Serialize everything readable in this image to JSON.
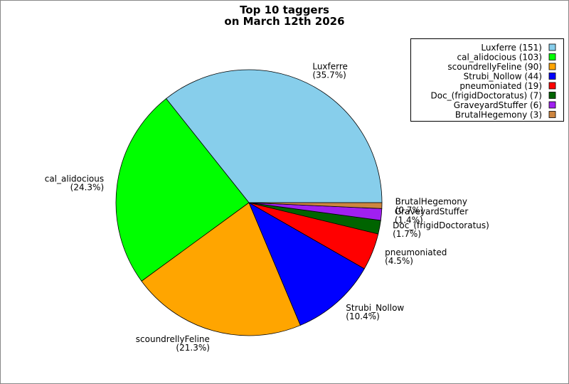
{
  "chart_data": {
    "type": "pie",
    "title": [
      "Top 10 taggers",
      "on March 12th 2026"
    ],
    "categories": [
      "Luxferre",
      "cal_alidocious",
      "scoundrellyFeline",
      "Strubi_Nollow",
      "pneumoniated",
      "Doc_(frigidDoctoratus)",
      "GraveyardStuffer",
      "BrutalHegemony"
    ],
    "values": [
      151,
      103,
      90,
      44,
      19,
      7,
      6,
      3
    ],
    "percent_labels": [
      "(35.7%)",
      "(24.3%)",
      "(21.3%)",
      "(10.4%)",
      "(4.5%)",
      "(1.7%)",
      "(1.4%)",
      "(0.7%)"
    ],
    "legend_labels": [
      "Luxferre (151)",
      "cal_alidocious (103)",
      "scoundrellyFeline (90)",
      "Strubi_Nollow (44)",
      "pneumoniated (19)",
      "Doc_(frigidDoctoratus) (7)",
      "GraveyardStuffer (6)",
      "BrutalHegemony (3)"
    ],
    "colors": [
      "#87ceeb",
      "#00ff00",
      "#ffa500",
      "#0000ff",
      "#ff0000",
      "#006400",
      "#a020f0",
      "#cd853f"
    ],
    "legend_position": "upper right"
  }
}
